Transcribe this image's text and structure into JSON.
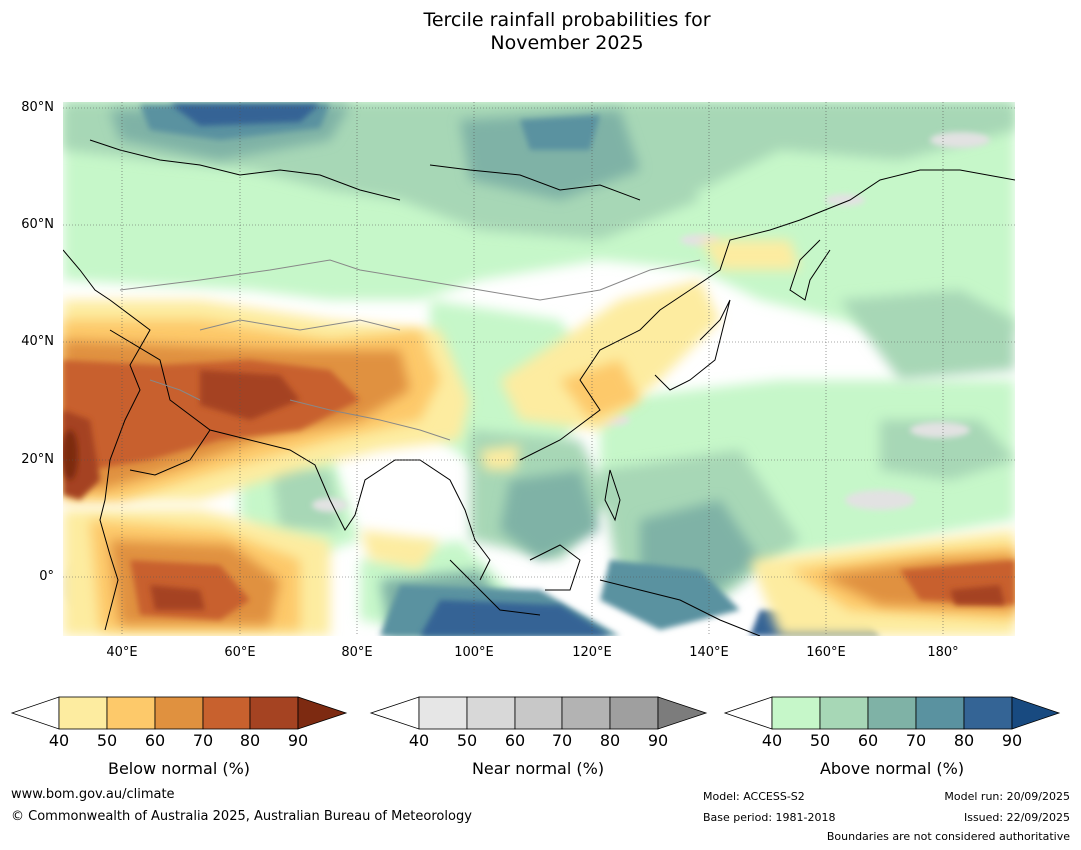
{
  "title": {
    "line1": "Tercile rainfall probabilities for",
    "line2": "November 2025"
  },
  "map": {
    "lat_labels": [
      "80°N",
      "60°N",
      "40°N",
      "20°N",
      "0°"
    ],
    "lon_labels": [
      "40°E",
      "60°E",
      "80°E",
      "100°E",
      "120°E",
      "140°E",
      "160°E",
      "180°"
    ],
    "extent": {
      "lon_min": 30,
      "lon_max": 192,
      "lat_min": -10,
      "lat_max": 81
    },
    "ocean_color": "#ffffff",
    "graticule_color": "#555555"
  },
  "colorbars": [
    {
      "name": "below-normal",
      "label": "Below normal (%)",
      "ticks": [
        "40",
        "50",
        "60",
        "70",
        "80",
        "90"
      ],
      "colors": [
        "#fdeca0",
        "#fdc96a",
        "#e0913f",
        "#c8612e",
        "#a54322"
      ],
      "extend_color": "#7d2a11"
    },
    {
      "name": "near-normal",
      "label": "Near normal (%)",
      "ticks": [
        "40",
        "50",
        "60",
        "70",
        "80",
        "90"
      ],
      "colors": [
        "#e6e6e6",
        "#d8d8d8",
        "#c8c8c8",
        "#b3b3b3",
        "#9f9f9f"
      ],
      "extend_color": "#7c7c7c"
    },
    {
      "name": "above-normal",
      "label": "Above normal (%)",
      "ticks": [
        "40",
        "50",
        "60",
        "70",
        "80",
        "90"
      ],
      "colors": [
        "#c6f7c9",
        "#a7d7b6",
        "#7fb2a6",
        "#5a92a0",
        "#346495"
      ],
      "extend_color": "#184a80"
    }
  ],
  "footer": {
    "website": "www.bom.gov.au/climate",
    "copyright": "© Commonwealth of Australia 2025, Australian Bureau of Meteorology",
    "model": "Model: ACCESS-S2",
    "base_period": "Base period: 1981-2018",
    "model_run": "Model run: 20/09/2025",
    "issued": "Issued: 22/09/2025",
    "disclaimer": "Boundaries are not considered authoritative"
  }
}
